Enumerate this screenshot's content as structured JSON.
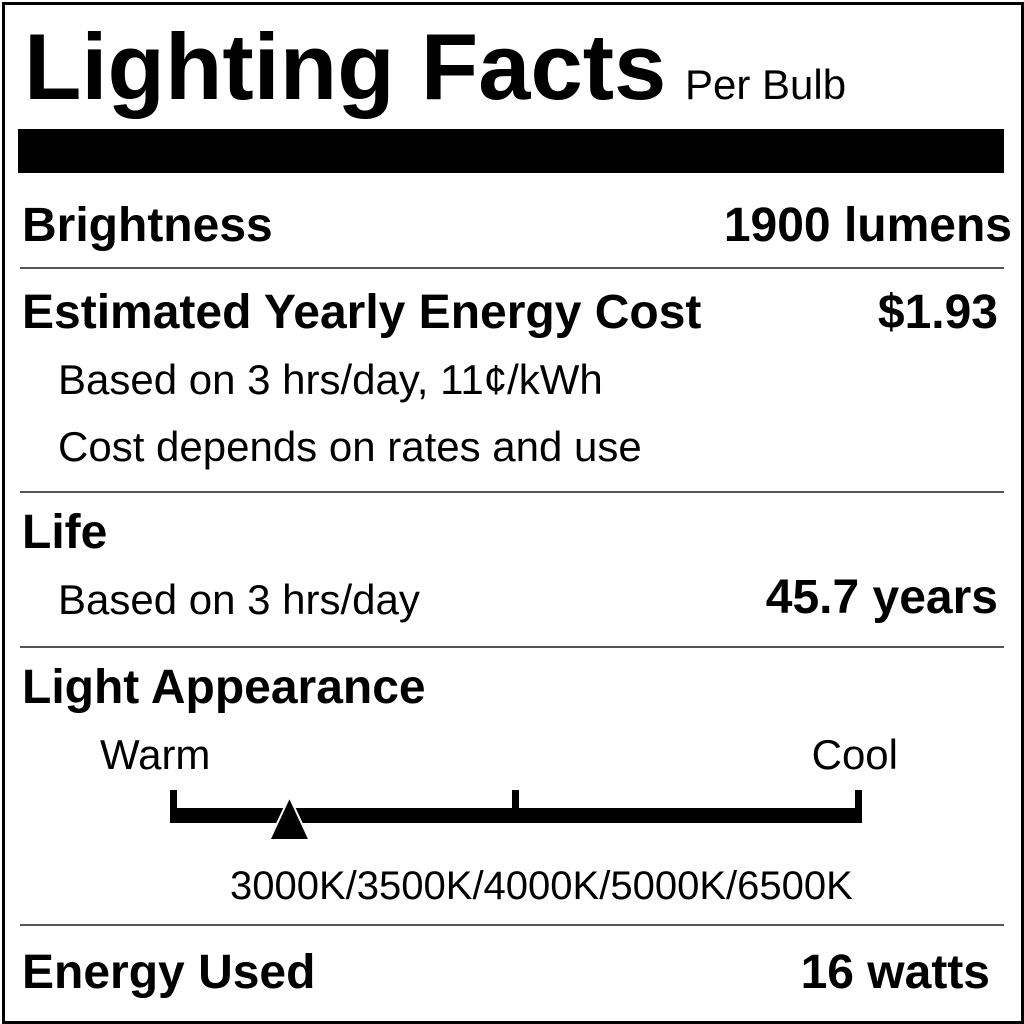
{
  "header": {
    "title": "Lighting Facts",
    "subtitle": "Per Bulb"
  },
  "brightness": {
    "label": "Brightness",
    "value": "1900 lumens"
  },
  "energy_cost": {
    "label": "Estimated Yearly Energy Cost",
    "value": "$1.93",
    "note1": "Based on 3 hrs/day, 11¢/kWh",
    "note2": "Cost depends on rates and use"
  },
  "life": {
    "label": "Life",
    "note": "Based on 3 hrs/day",
    "value": "45.7 years"
  },
  "light_appearance": {
    "label": "Light Appearance",
    "warm_label": "Warm",
    "cool_label": "Cool",
    "scale_labels": "3000K/3500K/4000K/5000K/6500K",
    "marker_position_fraction": 0.17
  },
  "energy_used": {
    "label": "Energy Used",
    "value": "16 watts"
  }
}
